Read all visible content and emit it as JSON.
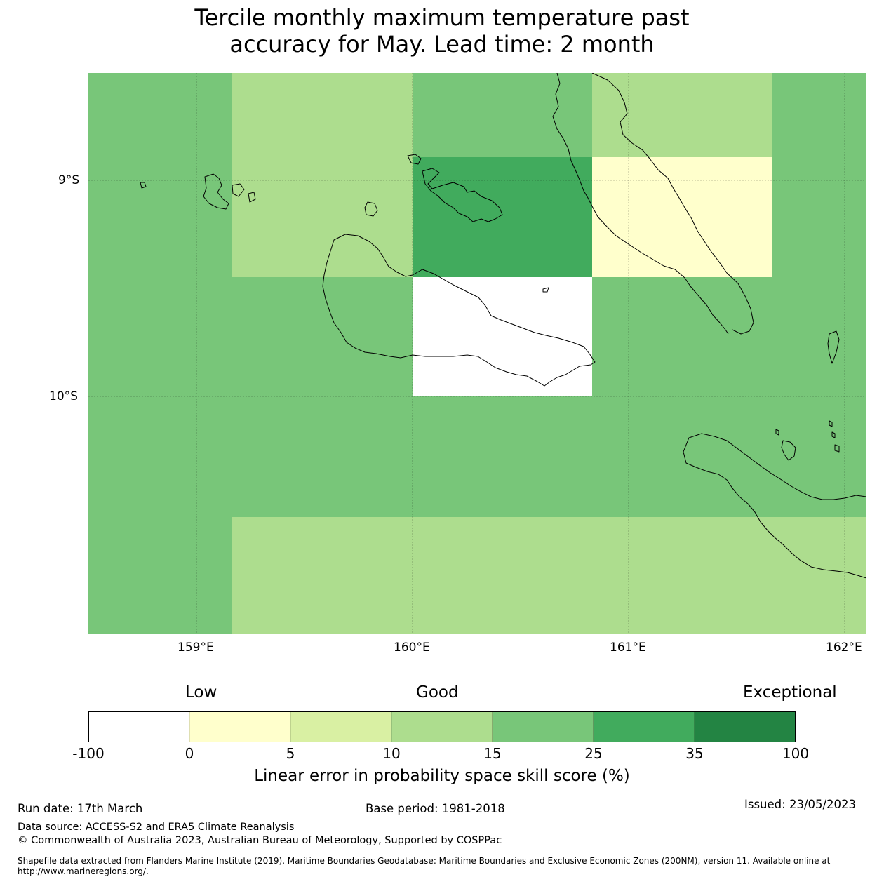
{
  "title": {
    "line1": "Tercile monthly maximum temperature past",
    "line2": "accuracy for May. Lead time: 2 month"
  },
  "map": {
    "lat_labels": [
      "9°S",
      "10°S"
    ],
    "lon_labels": [
      "159°E",
      "160°E",
      "161°E",
      "162°E"
    ],
    "lon_range": [
      158.5,
      162.1
    ],
    "lat_range": [
      -8.5,
      -11.1
    ],
    "grid_cells": [
      {
        "lon": [
          158.5,
          159.17
        ],
        "lat": [
          -8.5,
          -11.1
        ],
        "skill_class": "15-25"
      },
      {
        "lon": [
          159.17,
          160.0
        ],
        "lat": [
          -8.5,
          -9.45
        ],
        "skill_class": "10-15"
      },
      {
        "lon": [
          160.0,
          160.83
        ],
        "lat": [
          -8.5,
          -8.89
        ],
        "skill_class": "15-25"
      },
      {
        "lon": [
          160.0,
          160.83
        ],
        "lat": [
          -8.89,
          -9.45
        ],
        "skill_class": "25-35"
      },
      {
        "lon": [
          160.83,
          161.67
        ],
        "lat": [
          -8.5,
          -8.89
        ],
        "skill_class": "10-15"
      },
      {
        "lon": [
          160.83,
          161.67
        ],
        "lat": [
          -8.89,
          -9.45
        ],
        "skill_class": "0-5"
      },
      {
        "lon": [
          161.67,
          162.1
        ],
        "lat": [
          -8.5,
          -10.56
        ],
        "skill_class": "15-25"
      },
      {
        "lon": [
          159.17,
          160.0
        ],
        "lat": [
          -9.45,
          -10.0
        ],
        "skill_class": "15-25"
      },
      {
        "lon": [
          160.0,
          160.83
        ],
        "lat": [
          -9.45,
          -10.0
        ],
        "skill_class": "-100-0"
      },
      {
        "lon": [
          160.83,
          161.67
        ],
        "lat": [
          -9.45,
          -10.0
        ],
        "skill_class": "15-25"
      },
      {
        "lon": [
          159.17,
          161.67
        ],
        "lat": [
          -10.0,
          -10.56
        ],
        "skill_class": "15-25"
      },
      {
        "lon": [
          159.17,
          162.1
        ],
        "lat": [
          -10.56,
          -11.1
        ],
        "skill_class": "10-15"
      }
    ]
  },
  "colorbar": {
    "category_low": "Low",
    "category_good": "Good",
    "category_exceptional": "Exceptional",
    "ticks": [
      "-100",
      "0",
      "5",
      "10",
      "15",
      "25",
      "35",
      "100"
    ],
    "colors": [
      "#ffffff",
      "#ffffcc",
      "#d9f0a3",
      "#addd8e",
      "#78c679",
      "#41ab5d",
      "#238443"
    ],
    "label": "Linear error in probability space skill score (%)"
  },
  "footer": {
    "run_date": "Run date: 17th March",
    "base_period": "Base period: 1981-2018",
    "issued": "Issued: 23/05/2023",
    "data_source": "Data source: ACCESS-S2 and ERA5 Climate Reanalysis",
    "copyright": "© Commonwealth of Australia 2023, Australian Bureau of Meteorology, Supported by COSPPac",
    "shapefile_line1": "Shapefile data extracted from Flanders Marine Institute (2019), Maritime Boundaries Geodatabase: Maritime Boundaries and Exclusive Economic Zones (200NM), version 11. Available online at",
    "shapefile_line2": "http://www.marineregions.org/."
  }
}
